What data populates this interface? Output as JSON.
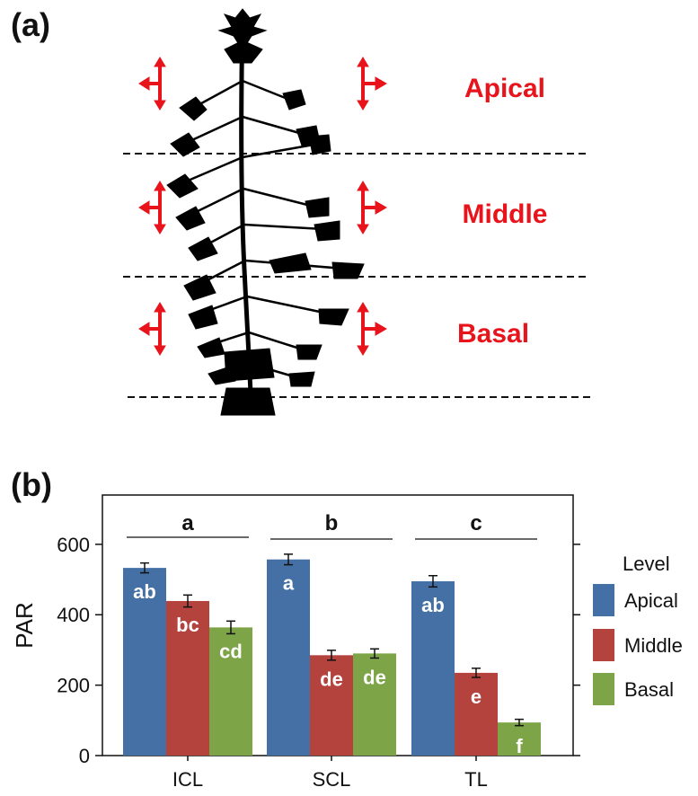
{
  "panel_a": {
    "label": "(a)",
    "levels": [
      "Apical",
      "Middle",
      "Basal"
    ],
    "arrow_color": "#e8131b"
  },
  "panel_b": {
    "label": "(b)"
  },
  "chart_data": {
    "type": "bar",
    "categories": [
      "ICL",
      "SCL",
      "TL"
    ],
    "ylabel": "PAR",
    "xlabel": "",
    "ylim": [
      0,
      740
    ],
    "yticks": [
      0,
      200,
      400,
      600
    ],
    "grid": false,
    "legend": {
      "title": "Level",
      "placement": "right"
    },
    "series": [
      {
        "name": "Apical",
        "color": "#4470a6",
        "values": [
          533,
          557,
          495
        ],
        "errors": [
          14,
          15,
          16
        ],
        "letters": [
          "ab",
          "a",
          "ab"
        ]
      },
      {
        "name": "Middle",
        "color": "#b4433e",
        "values": [
          439,
          285,
          235
        ],
        "errors": [
          17,
          14,
          13
        ],
        "letters": [
          "bc",
          "de",
          "e"
        ]
      },
      {
        "name": "Basal",
        "color": "#7da447",
        "values": [
          364,
          290,
          94
        ],
        "errors": [
          18,
          13,
          9
        ],
        "letters": [
          "cd",
          "de",
          "f"
        ]
      }
    ],
    "group_letters": [
      "a",
      "b",
      "c"
    ]
  }
}
